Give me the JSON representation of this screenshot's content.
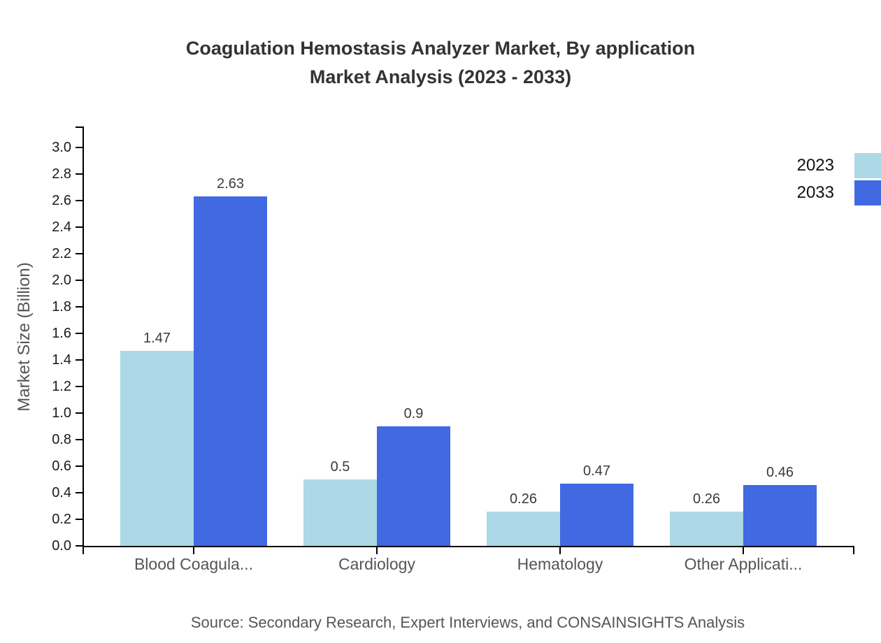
{
  "chart_data": {
    "type": "bar",
    "title": "Coagulation Hemostasis Analyzer Market, By application Market Analysis (2023 - 2033)",
    "title_lines": [
      "Coagulation Hemostasis Analyzer Market, By application",
      "Market Analysis (2023 - 2033)"
    ],
    "categories": [
      "Blood Coagula...",
      "Cardiology",
      "Hematology",
      "Other Applicati..."
    ],
    "series": [
      {
        "name": "2023",
        "color": "#ADD8E6",
        "values": [
          1.47,
          0.5,
          0.26,
          0.26
        ]
      },
      {
        "name": "2033",
        "color": "#4169E1",
        "values": [
          2.63,
          0.9,
          0.47,
          0.46
        ]
      }
    ],
    "xlabel": "",
    "ylabel": "Market Size (Billion)",
    "ylim": [
      0,
      3.16
    ],
    "yticks": [
      0.0,
      0.2,
      0.4,
      0.6,
      0.8,
      1.0,
      1.2,
      1.4,
      1.6,
      1.8,
      2.0,
      2.2,
      2.4,
      2.6,
      2.8,
      3.0
    ],
    "grid": false,
    "legend_position": "top-right",
    "source": "Source: Secondary Research, Expert Interviews, and CONSAINSIGHTS Analysis"
  },
  "colors": {
    "background": "#ffffff",
    "axis": "#000000",
    "title_text": "#333333",
    "tick_text": "#1a1a1a",
    "category_text": "#555555",
    "value_text": "#3a3a3a",
    "source_text": "#555555",
    "series_2023": "#ADD8E6",
    "series_2033": "#4169E1"
  }
}
